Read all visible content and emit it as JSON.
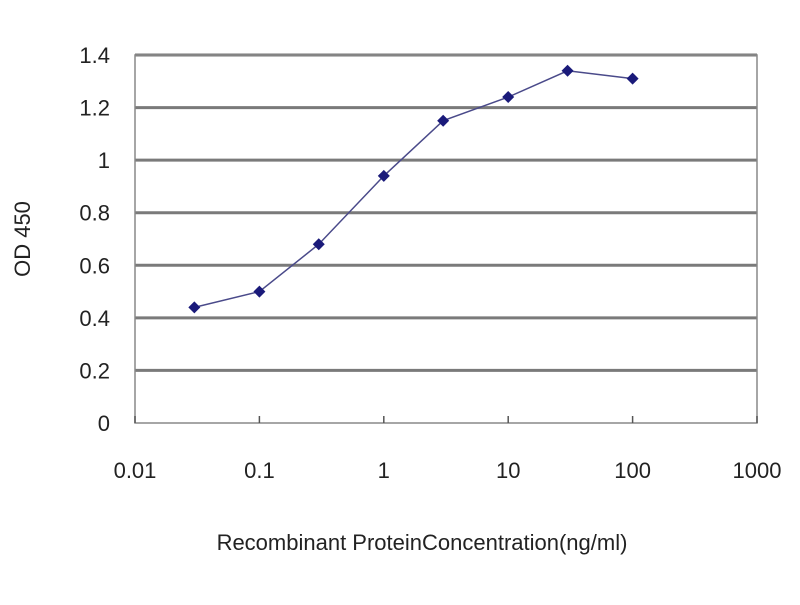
{
  "chart_data": {
    "type": "line",
    "title": "",
    "xlabel": "Recombinant ProteinConcentration(ng/ml)",
    "ylabel": "OD 450",
    "x_scale": "log",
    "xlim": [
      0.01,
      1000
    ],
    "ylim": [
      0,
      1.4
    ],
    "x_ticks": [
      "0.01",
      "0.1",
      "1",
      "10",
      "100",
      "1000"
    ],
    "y_ticks": [
      "0",
      "0.2",
      "0.4",
      "0.6",
      "0.8",
      "1",
      "1.2",
      "1.4"
    ],
    "grid": "horizontal",
    "legend": "none",
    "series": [
      {
        "x": [
          0.03,
          0.1,
          0.3,
          1,
          3,
          10,
          30,
          100
        ],
        "y": [
          0.44,
          0.5,
          0.68,
          0.94,
          1.15,
          1.24,
          1.34,
          1.31
        ],
        "color": "#1a1a7a",
        "marker": "diamond"
      }
    ]
  }
}
